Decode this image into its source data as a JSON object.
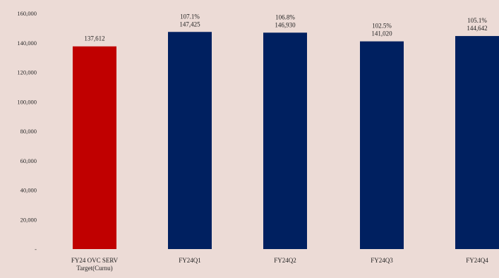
{
  "chart_data": {
    "type": "bar",
    "title": "",
    "xlabel": "",
    "ylabel": "",
    "ylim": [
      0,
      160000
    ],
    "grid": false,
    "legend": "none",
    "y_ticks": [
      0,
      20000,
      40000,
      60000,
      80000,
      100000,
      120000,
      140000,
      160000
    ],
    "y_tick_labels": [
      "-",
      "20,000",
      "40,000",
      "60,000",
      "80,000",
      "100,000",
      "120,000",
      "140,000",
      "160,000"
    ],
    "categories": [
      [
        "FY24 OVC SERV",
        "Target(Curnu)"
      ],
      [
        "FY24Q1"
      ],
      [
        "FY24Q2"
      ],
      [
        "FY24Q3"
      ],
      [
        "FY24Q4"
      ]
    ],
    "values": [
      137612,
      147425,
      146930,
      141020,
      144642
    ],
    "value_labels": [
      "137,612",
      "147,425",
      "146,930",
      "141,020",
      "144,642"
    ],
    "percent_labels": [
      "",
      "107.1%",
      "106.8%",
      "102.5%",
      "105.1%"
    ],
    "colors": [
      "#c00000",
      "#002060",
      "#002060",
      "#002060",
      "#002060"
    ]
  }
}
